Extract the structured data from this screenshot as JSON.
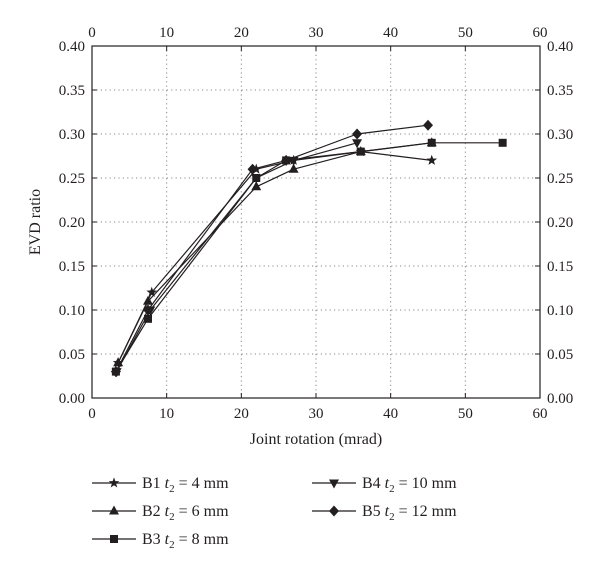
{
  "chart_data": {
    "type": "line",
    "xlabel": "Joint rotation (mrad)",
    "ylabel": "EVD ratio",
    "xlim": [
      0,
      60
    ],
    "ylim": [
      0,
      0.4
    ],
    "x_ticks": [
      0,
      10,
      20,
      30,
      40,
      50,
      60
    ],
    "y_ticks": [
      0.0,
      0.05,
      0.1,
      0.15,
      0.2,
      0.25,
      0.3,
      0.35,
      0.4
    ],
    "grid": true,
    "grid_style": "dotted",
    "secondary_axes": "top and right mirror the bottom and left ticks",
    "legend_placement": "below",
    "series": [
      {
        "name": "B1 t2 = 4 mm",
        "label": {
          "prefix": "B1 ",
          "var": "t",
          "sub": "2",
          "suffix": " = 4 mm"
        },
        "marker": "star",
        "points": [
          [
            3.5,
            0.04
          ],
          [
            8,
            0.12
          ],
          [
            22,
            0.26
          ],
          [
            27,
            0.27
          ],
          [
            36,
            0.28
          ],
          [
            45.5,
            0.27
          ]
        ]
      },
      {
        "name": "B2 t2 = 6 mm",
        "label": {
          "prefix": "B2 ",
          "var": "t",
          "sub": "2",
          "suffix": " = 6 mm"
        },
        "marker": "triangle-up",
        "points": [
          [
            3.5,
            0.04
          ],
          [
            7.5,
            0.11
          ],
          [
            22,
            0.24
          ],
          [
            27,
            0.26
          ],
          [
            36,
            0.28
          ],
          [
            45.5,
            0.29
          ]
        ]
      },
      {
        "name": "B3 t2 = 8 mm",
        "label": {
          "prefix": "B3 ",
          "var": "t",
          "sub": "2",
          "suffix": " = 8 mm"
        },
        "marker": "square",
        "points": [
          [
            3.2,
            0.03
          ],
          [
            7.5,
            0.09
          ],
          [
            22,
            0.25
          ],
          [
            26,
            0.27
          ],
          [
            36,
            0.28
          ],
          [
            45.5,
            0.29
          ],
          [
            55,
            0.29
          ]
        ]
      },
      {
        "name": "B4 t2 = 10 mm",
        "label": {
          "prefix": "B4 ",
          "var": "t",
          "sub": "2",
          "suffix": " = 10 mm"
        },
        "marker": "triangle-down",
        "points": [
          [
            3.3,
            0.03
          ],
          [
            7.8,
            0.1
          ],
          [
            22,
            0.25
          ],
          [
            27,
            0.27
          ],
          [
            35.5,
            0.29
          ]
        ]
      },
      {
        "name": "B5 t2 = 12 mm",
        "label": {
          "prefix": "B5 ",
          "var": "t",
          "sub": "2",
          "suffix": " = 12 mm"
        },
        "marker": "diamond",
        "points": [
          [
            3.2,
            0.03
          ],
          [
            7.5,
            0.1
          ],
          [
            21.5,
            0.26
          ],
          [
            26,
            0.27
          ],
          [
            35.5,
            0.3
          ],
          [
            45,
            0.31
          ]
        ]
      }
    ]
  },
  "colors": {
    "line": "#231f20",
    "grid": "#8a8a8a",
    "background": "#ffffff"
  }
}
